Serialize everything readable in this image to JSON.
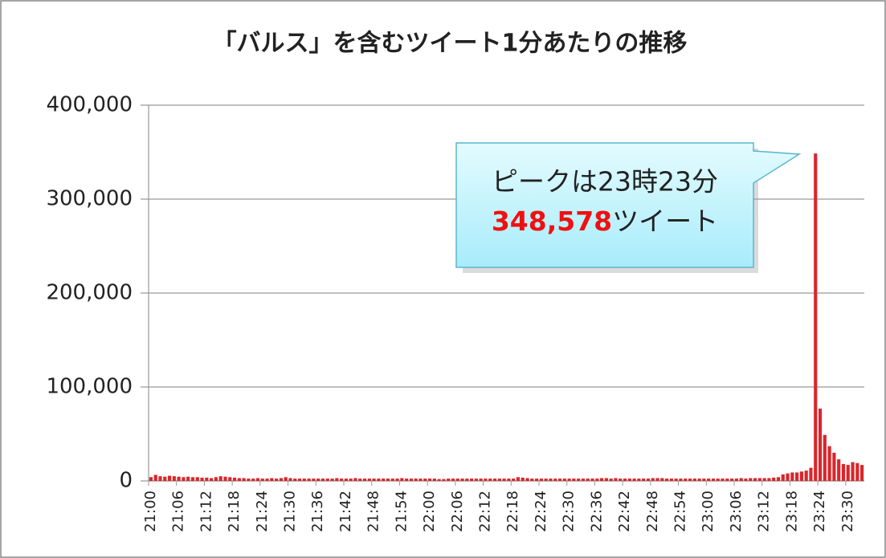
{
  "chart_data": {
    "type": "bar",
    "title": "「バルス」を含むツイート1分あたりの推移",
    "color": "#d9262c",
    "grid": true,
    "ylim": [
      0,
      400000
    ],
    "yticks": [
      0,
      {
        "value": 100000,
        "label": "100,000"
      },
      {
        "value": 200000,
        "label": "200,000"
      },
      {
        "value": 300000,
        "label": "300,000"
      },
      {
        "value": 400000,
        "label": "400,000"
      }
    ],
    "annotation": {
      "line1": "ピークは23時23分",
      "value": "348,578",
      "suffix": "ツイート"
    },
    "categories": [
      "21:00",
      null,
      null,
      null,
      null,
      null,
      "21:06",
      null,
      null,
      null,
      null,
      null,
      "21:12",
      null,
      null,
      null,
      null,
      null,
      "21:18",
      null,
      null,
      null,
      null,
      null,
      "21:24",
      null,
      null,
      null,
      null,
      null,
      "21:30",
      null,
      null,
      null,
      null,
      null,
      "21:36",
      null,
      null,
      null,
      null,
      null,
      "21:42",
      null,
      null,
      null,
      null,
      null,
      "21:48",
      null,
      null,
      null,
      null,
      null,
      "21:54",
      null,
      null,
      null,
      null,
      null,
      "22:00",
      null,
      null,
      null,
      null,
      null,
      "22:06",
      null,
      null,
      null,
      null,
      null,
      "22:12",
      null,
      null,
      null,
      null,
      null,
      "22:18",
      null,
      null,
      null,
      null,
      null,
      "22:24",
      null,
      null,
      null,
      null,
      null,
      "22:30",
      null,
      null,
      null,
      null,
      null,
      "22:36",
      null,
      null,
      null,
      null,
      null,
      "22:42",
      null,
      null,
      null,
      null,
      null,
      "22:48",
      null,
      null,
      null,
      null,
      null,
      "22:54",
      null,
      null,
      null,
      null,
      null,
      "23:00",
      null,
      null,
      null,
      null,
      null,
      "23:06",
      null,
      null,
      null,
      null,
      null,
      "23:12",
      null,
      null,
      null,
      null,
      null,
      "23:18",
      null,
      null,
      null,
      null,
      null,
      "23:24",
      null,
      null,
      null,
      null,
      null,
      "23:30",
      null,
      null,
      null
    ],
    "values": [
      4000,
      6500,
      5000,
      4500,
      5500,
      5000,
      4500,
      4000,
      4500,
      4000,
      4000,
      3500,
      3500,
      3000,
      4000,
      5000,
      4500,
      4000,
      3500,
      3000,
      3000,
      2500,
      2500,
      3000,
      2500,
      2500,
      3000,
      2500,
      3000,
      4000,
      3000,
      2500,
      2500,
      2500,
      2500,
      2500,
      2500,
      2500,
      2500,
      2500,
      3000,
      2500,
      2500,
      2500,
      3000,
      2500,
      2500,
      2500,
      2500,
      2500,
      2500,
      2500,
      2500,
      2500,
      3000,
      2500,
      2500,
      2500,
      2500,
      2500,
      2500,
      2500,
      2000,
      2000,
      2500,
      2500,
      2500,
      2500,
      2500,
      2500,
      2500,
      2500,
      2500,
      2500,
      2500,
      2500,
      2500,
      2500,
      2500,
      4000,
      3500,
      3000,
      2500,
      2500,
      2500,
      2500,
      2500,
      2500,
      2500,
      2500,
      2500,
      2500,
      2500,
      2500,
      2500,
      2500,
      2500,
      3000,
      3000,
      2500,
      3000,
      2500,
      2500,
      2500,
      2500,
      2500,
      2500,
      2500,
      3000,
      3000,
      3000,
      2500,
      2500,
      2500,
      2500,
      2500,
      2500,
      2500,
      2500,
      2500,
      2500,
      2500,
      2500,
      2500,
      2500,
      2500,
      2500,
      3000,
      2500,
      3000,
      3000,
      3000,
      3000,
      3000,
      3500,
      4000,
      7000,
      8000,
      9000,
      9000,
      10000,
      11000,
      14000,
      348578,
      77000,
      49000,
      37000,
      30000,
      23000,
      18000,
      17000,
      20000,
      19000,
      17000
    ]
  }
}
